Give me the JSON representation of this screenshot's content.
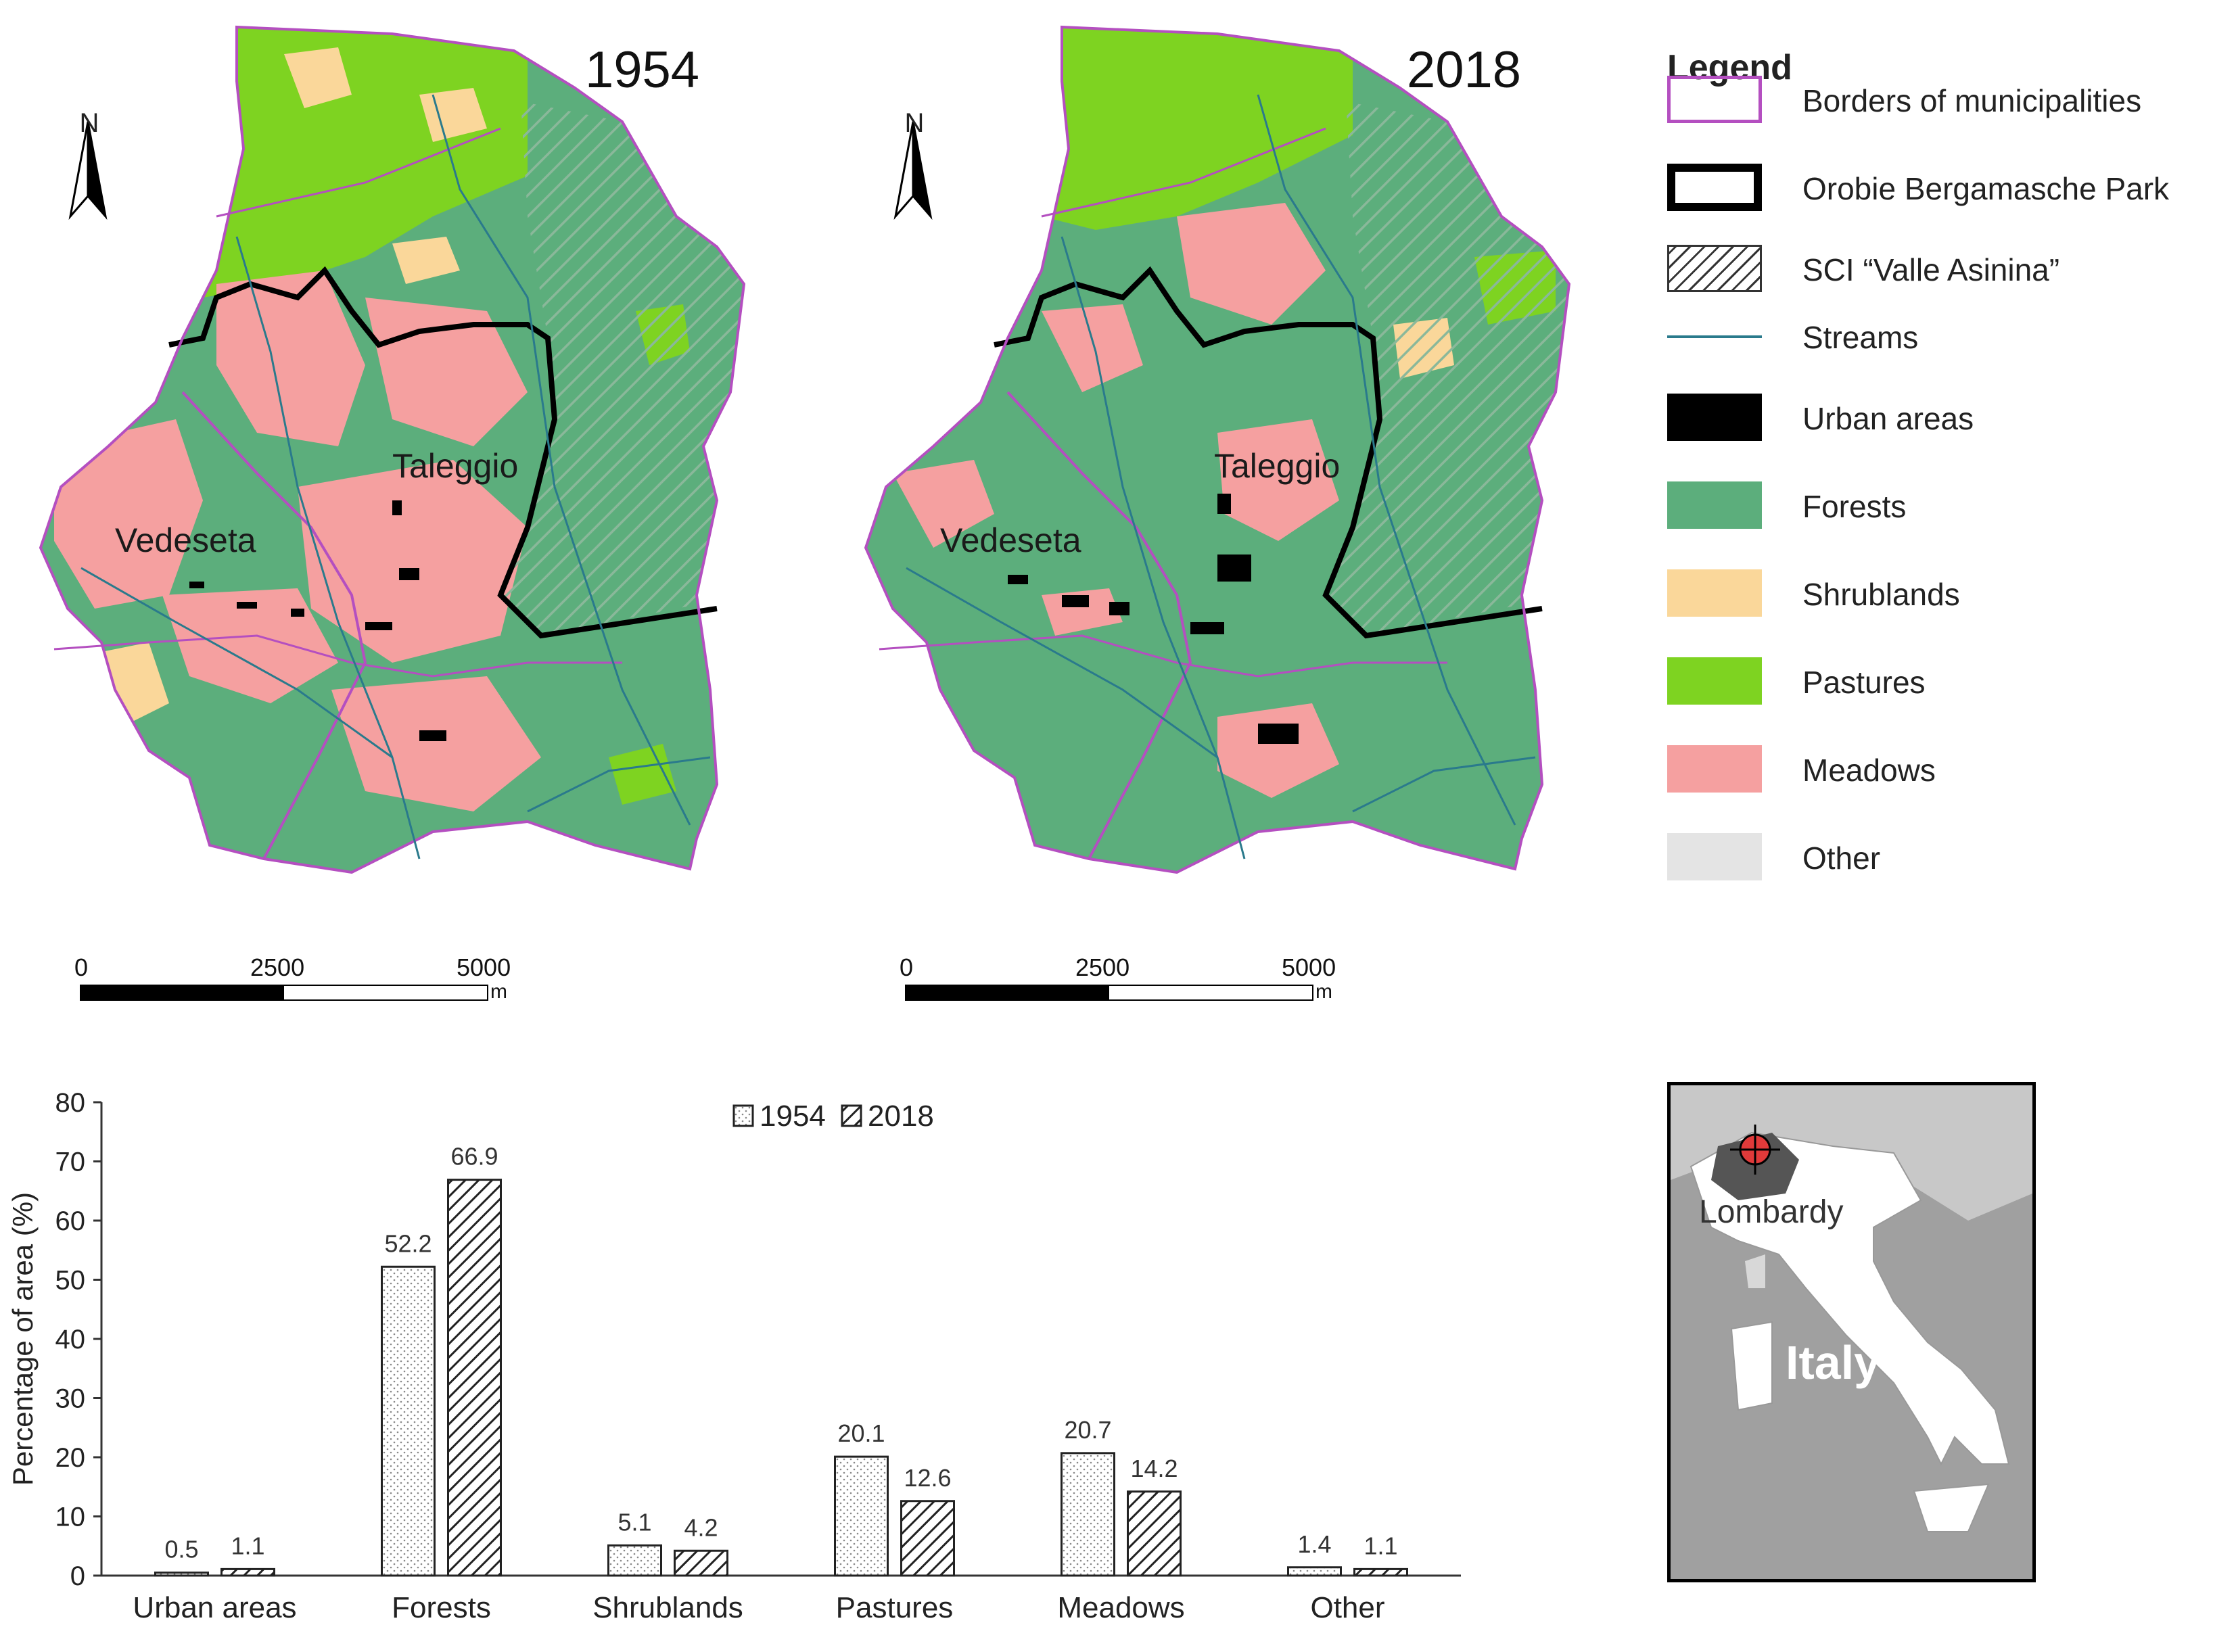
{
  "map_left": {
    "year": "1954",
    "labels": {
      "taleggio": "Taleggio",
      "vedeseta": "Vedeseta"
    },
    "north": "N",
    "scale": {
      "zero": "0",
      "mid": "2500",
      "max": "5000",
      "unit": "m"
    }
  },
  "map_right": {
    "year": "2018",
    "labels": {
      "taleggio": "Taleggio",
      "vedeseta": "Vedeseta"
    },
    "north": "N",
    "scale": {
      "zero": "0",
      "mid": "2500",
      "max": "5000",
      "unit": "m"
    }
  },
  "legend": {
    "title": "Legend",
    "items": [
      {
        "label": "Borders of municipalities",
        "symbol": "outline",
        "color": "#b44fc0"
      },
      {
        "label": "Orobie Bergamasche Park",
        "symbol": "outline-thick",
        "color": "#000000"
      },
      {
        "label": "SCI “Valle Asinina”",
        "symbol": "hatch",
        "color": "#333333"
      },
      {
        "label": "Streams",
        "symbol": "line",
        "color": "#2a7a8c"
      },
      {
        "label": "Urban areas",
        "symbol": "fill",
        "color": "#000000"
      },
      {
        "label": "Forests",
        "symbol": "fill",
        "color": "#5cae7c"
      },
      {
        "label": "Shrublands",
        "symbol": "fill",
        "color": "#fad79a"
      },
      {
        "label": "Pastures",
        "symbol": "fill",
        "color": "#7ed321"
      },
      {
        "label": "Meadows",
        "symbol": "fill",
        "color": "#f5a0a0"
      },
      {
        "label": "Other",
        "symbol": "fill",
        "color": "#e4e4e4"
      }
    ]
  },
  "inset": {
    "region": "Lombardy",
    "country": "Italy"
  },
  "chart_data": {
    "type": "bar",
    "categories": [
      "Urban areas",
      "Forests",
      "Shrublands",
      "Pastures",
      "Meadows",
      "Other"
    ],
    "series": [
      {
        "name": "1954",
        "values": [
          0.5,
          52.2,
          5.1,
          20.1,
          20.7,
          1.4
        ],
        "labels": [
          "0.5",
          "52.2",
          "5.1",
          "20.1",
          "20.7",
          "1.4"
        ],
        "pattern": "dotted"
      },
      {
        "name": "2018",
        "values": [
          1.1,
          66.9,
          4.2,
          12.6,
          14.2,
          1.1
        ],
        "labels": [
          "1.1",
          "66.9",
          "4.2",
          "12.6",
          "14.2",
          "1.1"
        ],
        "pattern": "hatched"
      }
    ],
    "ylabel": "Percentage of area (%)",
    "ylim": [
      0,
      80
    ],
    "yticks": [
      0,
      10,
      20,
      30,
      40,
      50,
      60,
      70,
      80
    ],
    "legend_position": "top-center"
  }
}
